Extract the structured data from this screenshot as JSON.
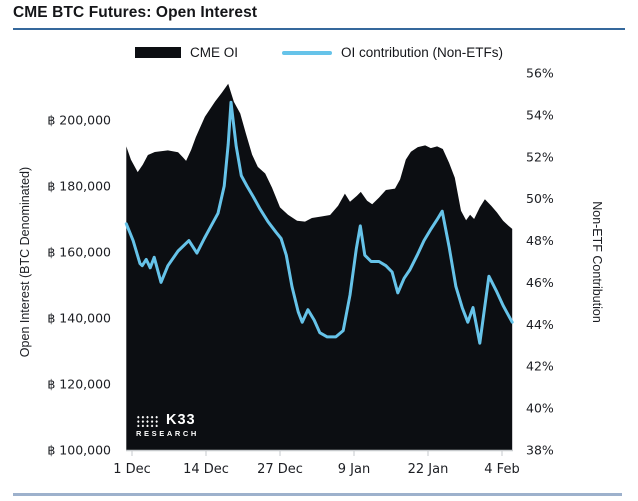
{
  "header": {
    "title": "CME BTC Futures: Open Interest"
  },
  "legend": {
    "items": [
      {
        "label": "CME OI",
        "type": "area",
        "color": "#0c0e12"
      },
      {
        "label": "OI contribution (Non-ETFs)",
        "type": "line",
        "color": "#66c3e9"
      }
    ]
  },
  "logo": {
    "name": "K33",
    "sub": "RESEARCH"
  },
  "colors": {
    "area": "#0c0e12",
    "line": "#66c3e9",
    "axis": "#c6c9cc",
    "tick_text": "#1c1e23",
    "top_rule": "#35689c",
    "bottom_rule": "#9db1cc"
  },
  "chart_data": {
    "type": "combo-area-line",
    "title": "CME BTC Futures: Open Interest",
    "grid": false,
    "legend_position": "top-center",
    "x_axis": {
      "unit": "days since 1 Dec",
      "range_days": [
        -1,
        67
      ],
      "ticks": [
        {
          "label": "1 Dec",
          "day": 0
        },
        {
          "label": "14 Dec",
          "day": 13
        },
        {
          "label": "27 Dec",
          "day": 26
        },
        {
          "label": "9 Jan",
          "day": 39
        },
        {
          "label": "22 Jan",
          "day": 52
        },
        {
          "label": "4 Feb",
          "day": 65
        }
      ]
    },
    "left_axis": {
      "title": "Open Interest (BTC Denominated)",
      "range": [
        100000,
        200000
      ],
      "ticks": [
        {
          "label": "฿ 100,000",
          "value": 100000
        },
        {
          "label": "฿ 120,000",
          "value": 120000
        },
        {
          "label": "฿ 140,000",
          "value": 140000
        },
        {
          "label": "฿ 160,000",
          "value": 160000
        },
        {
          "label": "฿ 180,000",
          "value": 180000
        },
        {
          "label": "฿ 200,000",
          "value": 200000
        }
      ]
    },
    "right_axis": {
      "title": "Non-ETF Contribution",
      "range": [
        38,
        56
      ],
      "ticks": [
        {
          "label": "38%",
          "value": 38
        },
        {
          "label": "40%",
          "value": 40
        },
        {
          "label": "42%",
          "value": 42
        },
        {
          "label": "44%",
          "value": 44
        },
        {
          "label": "46%",
          "value": 46
        },
        {
          "label": "48%",
          "value": 48
        },
        {
          "label": "50%",
          "value": 50
        },
        {
          "label": "52%",
          "value": 52
        },
        {
          "label": "54%",
          "value": 54
        },
        {
          "label": "56%",
          "value": 56
        }
      ]
    },
    "series": [
      {
        "name": "CME OI",
        "type": "area",
        "axis": "left",
        "color": "#0c0e12",
        "unit": "BTC",
        "points": [
          [
            -1.0,
            192000
          ],
          [
            -0.2,
            188000
          ],
          [
            1.0,
            184200
          ],
          [
            1.9,
            186500
          ],
          [
            2.8,
            189400
          ],
          [
            4.0,
            190300
          ],
          [
            6.3,
            190800
          ],
          [
            8.1,
            190200
          ],
          [
            9.0,
            188600
          ],
          [
            9.5,
            187600
          ],
          [
            10.4,
            191000
          ],
          [
            11.2,
            194800
          ],
          [
            12.8,
            201000
          ],
          [
            14.6,
            205600
          ],
          [
            15.8,
            208300
          ],
          [
            16.9,
            211000
          ],
          [
            17.9,
            205500
          ],
          [
            19.0,
            202000
          ],
          [
            20.0,
            196000
          ],
          [
            21.1,
            189500
          ],
          [
            22.1,
            185800
          ],
          [
            23.4,
            183800
          ],
          [
            24.6,
            179500
          ],
          [
            26.0,
            173500
          ],
          [
            27.4,
            171300
          ],
          [
            29.0,
            169500
          ],
          [
            30.4,
            169200
          ],
          [
            31.6,
            170300
          ],
          [
            33.4,
            170800
          ],
          [
            34.8,
            171200
          ],
          [
            36.2,
            174000
          ],
          [
            37.4,
            177700
          ],
          [
            38.3,
            175200
          ],
          [
            39.5,
            177000
          ],
          [
            40.2,
            178200
          ],
          [
            41.3,
            175500
          ],
          [
            42.2,
            174500
          ],
          [
            43.4,
            176500
          ],
          [
            44.6,
            178800
          ],
          [
            46.2,
            179200
          ],
          [
            47.1,
            182000
          ],
          [
            48.1,
            188000
          ],
          [
            49.0,
            190400
          ],
          [
            50.2,
            191800
          ],
          [
            51.5,
            192300
          ],
          [
            52.5,
            191500
          ],
          [
            53.6,
            192000
          ],
          [
            54.6,
            191200
          ],
          [
            55.7,
            187000
          ],
          [
            56.7,
            182500
          ],
          [
            57.8,
            172500
          ],
          [
            58.7,
            169600
          ],
          [
            59.4,
            171300
          ],
          [
            60.1,
            170000
          ],
          [
            61.1,
            173500
          ],
          [
            62.0,
            176000
          ],
          [
            63.1,
            174000
          ],
          [
            64.1,
            172000
          ],
          [
            65.2,
            169500
          ],
          [
            66.1,
            168000
          ],
          [
            66.8,
            167000
          ]
        ]
      },
      {
        "name": "OI contribution (Non-ETFs)",
        "type": "line",
        "axis": "right",
        "color": "#66c3e9",
        "unit": "%",
        "points": [
          [
            -1.0,
            48.8
          ],
          [
            0.2,
            48.0
          ],
          [
            1.4,
            46.9
          ],
          [
            1.8,
            46.8
          ],
          [
            2.5,
            47.1
          ],
          [
            3.2,
            46.7
          ],
          [
            3.9,
            47.2
          ],
          [
            5.1,
            46.0
          ],
          [
            6.3,
            46.8
          ],
          [
            8.1,
            47.5
          ],
          [
            10.0,
            48.0
          ],
          [
            11.4,
            47.4
          ],
          [
            12.7,
            48.1
          ],
          [
            13.9,
            48.7
          ],
          [
            15.1,
            49.3
          ],
          [
            16.2,
            50.6
          ],
          [
            16.9,
            52.6
          ],
          [
            17.4,
            54.6
          ],
          [
            18.3,
            52.5
          ],
          [
            19.2,
            51.1
          ],
          [
            20.2,
            50.6
          ],
          [
            21.3,
            50.1
          ],
          [
            22.5,
            49.5
          ],
          [
            23.9,
            48.9
          ],
          [
            25.3,
            48.4
          ],
          [
            26.2,
            48.1
          ],
          [
            27.1,
            47.3
          ],
          [
            28.1,
            45.8
          ],
          [
            29.2,
            44.6
          ],
          [
            29.9,
            44.1
          ],
          [
            30.9,
            44.7
          ],
          [
            32.0,
            44.2
          ],
          [
            33.0,
            43.6
          ],
          [
            34.3,
            43.4
          ],
          [
            35.8,
            43.4
          ],
          [
            37.1,
            43.7
          ],
          [
            38.3,
            45.4
          ],
          [
            39.4,
            47.6
          ],
          [
            40.1,
            48.7
          ],
          [
            40.9,
            47.3
          ],
          [
            42.0,
            47.0
          ],
          [
            43.4,
            47.0
          ],
          [
            44.6,
            46.8
          ],
          [
            45.7,
            46.5
          ],
          [
            46.7,
            45.5
          ],
          [
            47.8,
            46.2
          ],
          [
            48.8,
            46.6
          ],
          [
            50.1,
            47.3
          ],
          [
            51.3,
            48.0
          ],
          [
            52.4,
            48.5
          ],
          [
            53.6,
            49.0
          ],
          [
            54.5,
            49.4
          ],
          [
            55.7,
            47.7
          ],
          [
            56.9,
            45.8
          ],
          [
            58.0,
            44.8
          ],
          [
            59.0,
            44.1
          ],
          [
            59.9,
            44.8
          ],
          [
            61.1,
            43.1
          ],
          [
            62.7,
            46.3
          ],
          [
            64.0,
            45.6
          ],
          [
            65.2,
            44.9
          ],
          [
            66.8,
            44.1
          ]
        ]
      }
    ]
  }
}
